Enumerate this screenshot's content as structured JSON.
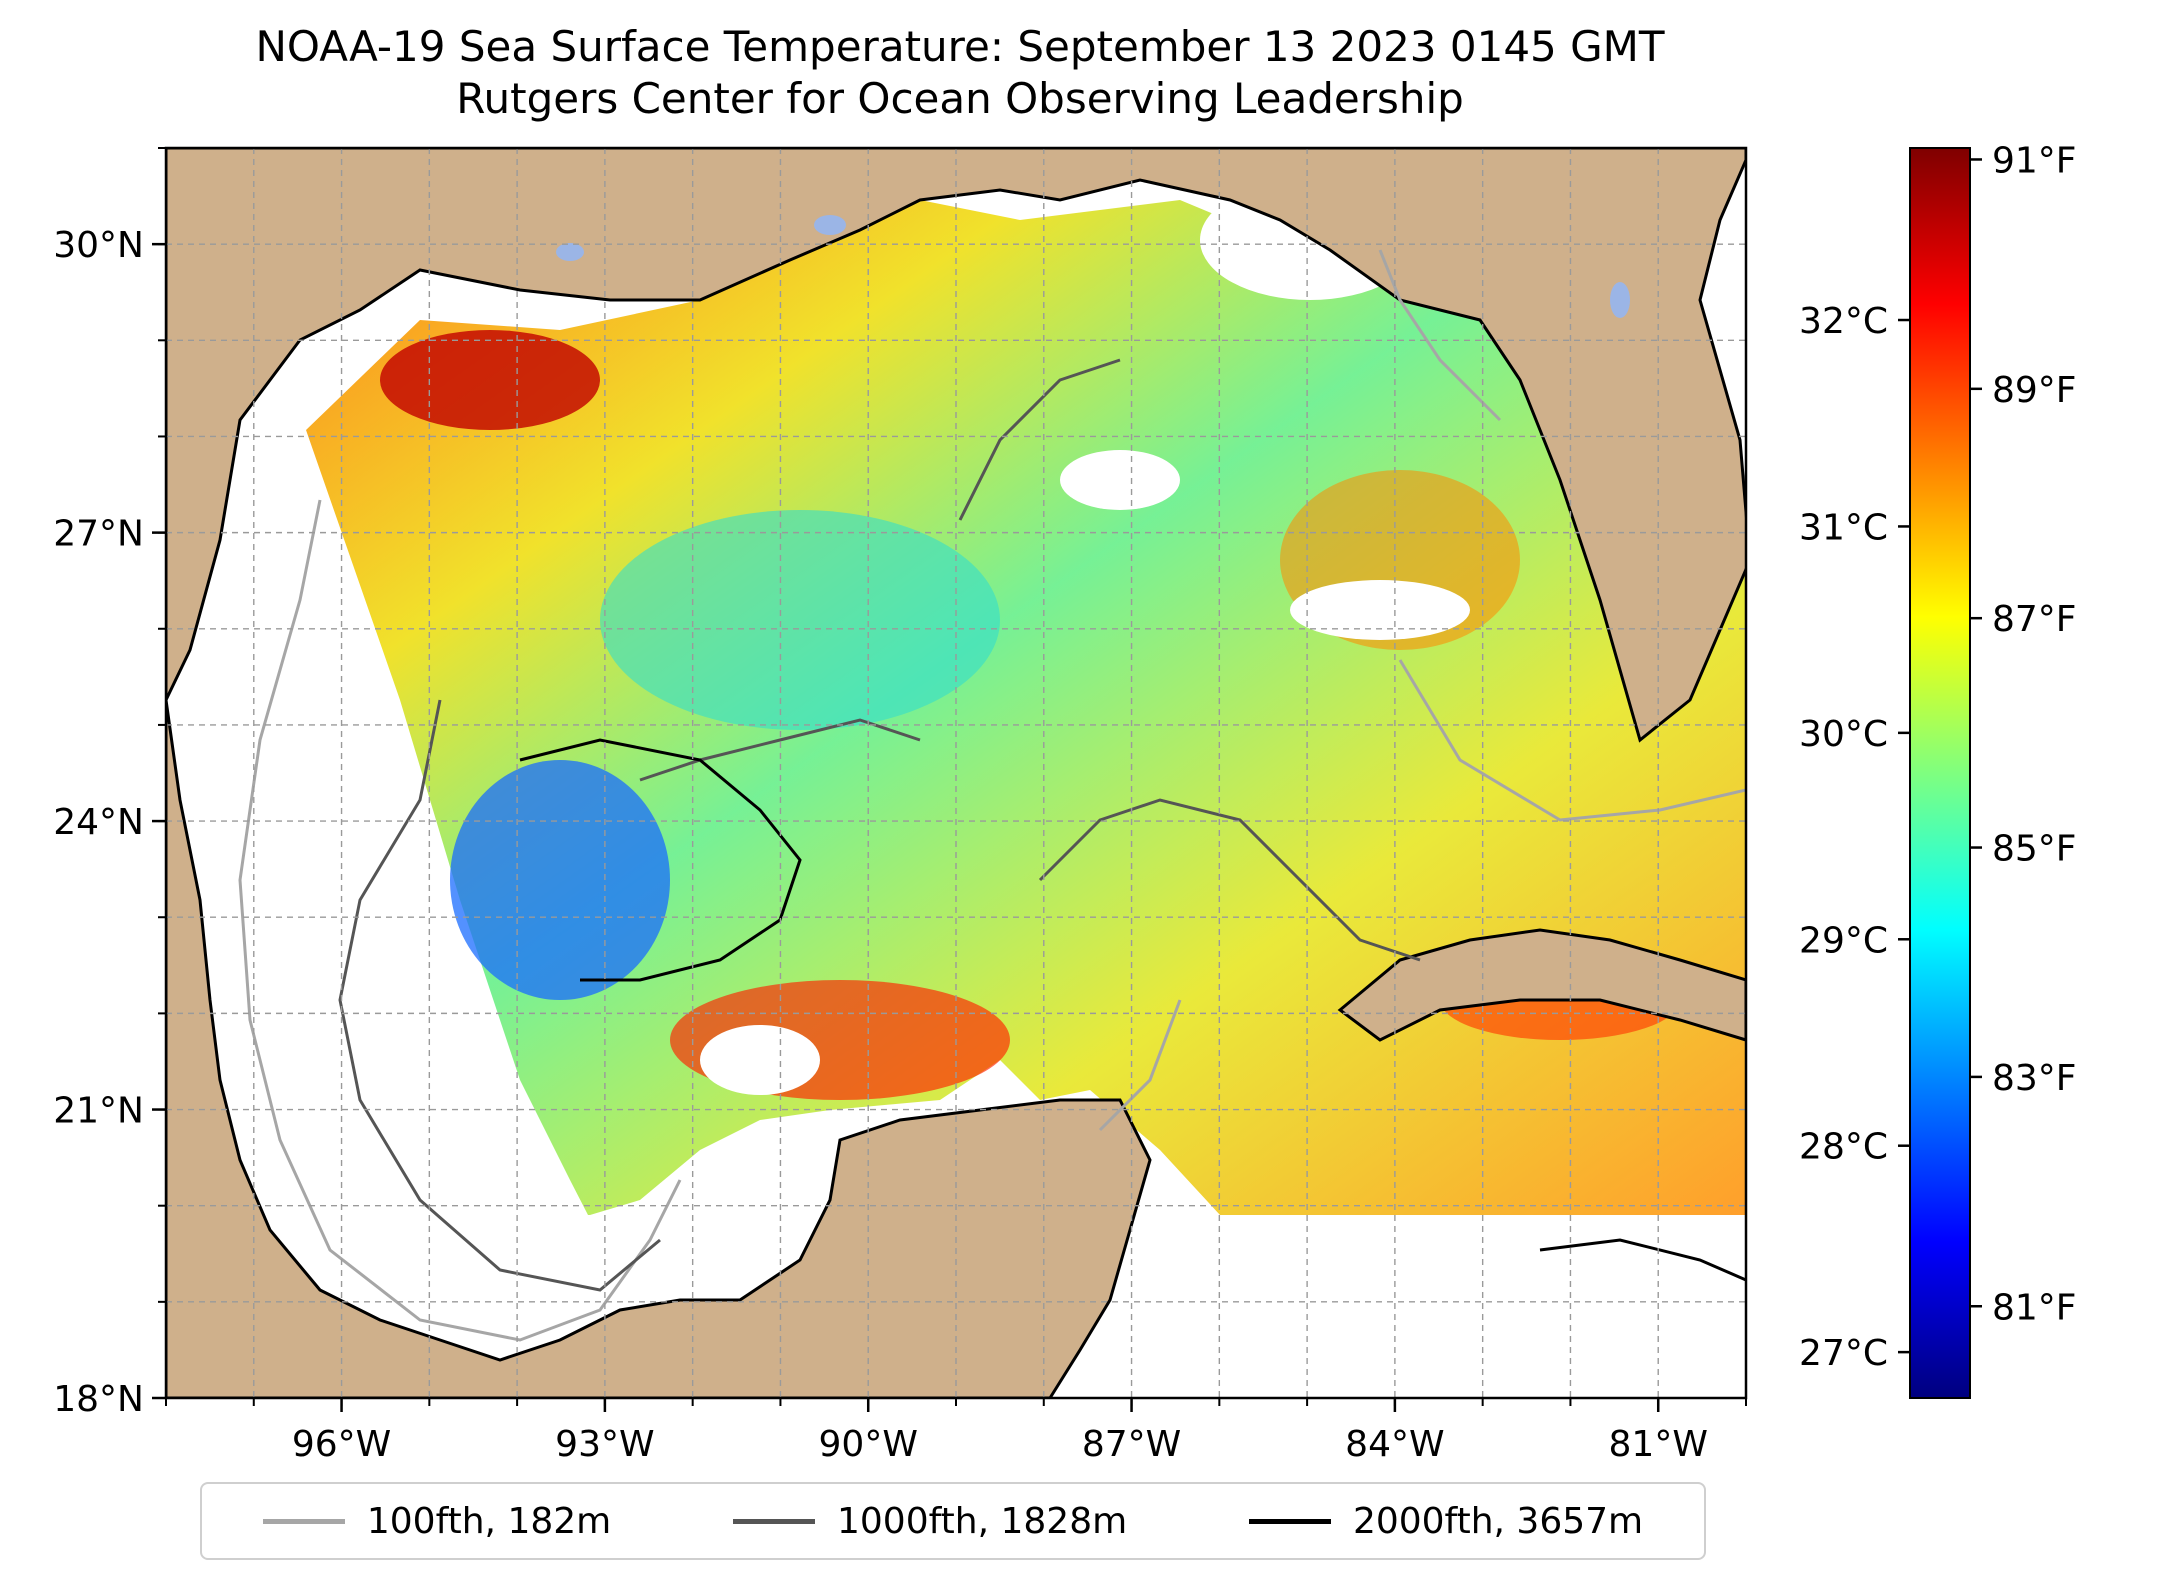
{
  "title": {
    "line1": "NOAA-19 Sea Surface Temperature: September 13 2023 0145 GMT",
    "line2": "Rutgers Center for Ocean Observing Leadership"
  },
  "map": {
    "lon_range": [
      -98.0,
      -80.0
    ],
    "lat_range": [
      18.0,
      31.0
    ],
    "grid": true,
    "land_color": "#cfb08b",
    "lake_color": "#9bb5e6",
    "lat_ticks": [
      {
        "value": 30,
        "label": "30°N"
      },
      {
        "value": 27,
        "label": "27°N"
      },
      {
        "value": 24,
        "label": "24°N"
      },
      {
        "value": 21,
        "label": "21°N"
      },
      {
        "value": 18,
        "label": "18°N"
      }
    ],
    "lon_ticks": [
      {
        "value": -96,
        "label": "96°W"
      },
      {
        "value": -93,
        "label": "93°W"
      },
      {
        "value": -90,
        "label": "90°W"
      },
      {
        "value": -87,
        "label": "87°W"
      },
      {
        "value": -84,
        "label": "84°W"
      },
      {
        "value": -81,
        "label": "81°W"
      }
    ]
  },
  "colorbar": {
    "colormap": "jet",
    "range_F": [
      80.2,
      91.1
    ],
    "fahrenheit_ticks": [
      {
        "value": 91,
        "label": "91°F"
      },
      {
        "value": 89,
        "label": "89°F"
      },
      {
        "value": 87,
        "label": "87°F"
      },
      {
        "value": 85,
        "label": "85°F"
      },
      {
        "value": 83,
        "label": "83°F"
      },
      {
        "value": 81,
        "label": "81°F"
      }
    ],
    "celsius_ticks": [
      {
        "value": 32,
        "label": "32°C"
      },
      {
        "value": 31,
        "label": "31°C"
      },
      {
        "value": 30,
        "label": "30°C"
      },
      {
        "value": 29,
        "label": "29°C"
      },
      {
        "value": 28,
        "label": "28°C"
      },
      {
        "value": 27,
        "label": "27°C"
      }
    ]
  },
  "legend": {
    "items": [
      {
        "label": "100fth, 182m",
        "color": "#a6a6a6"
      },
      {
        "label": "1000fth, 1828m",
        "color": "#555555"
      },
      {
        "label": "2000fth, 3657m",
        "color": "#000000"
      }
    ]
  }
}
